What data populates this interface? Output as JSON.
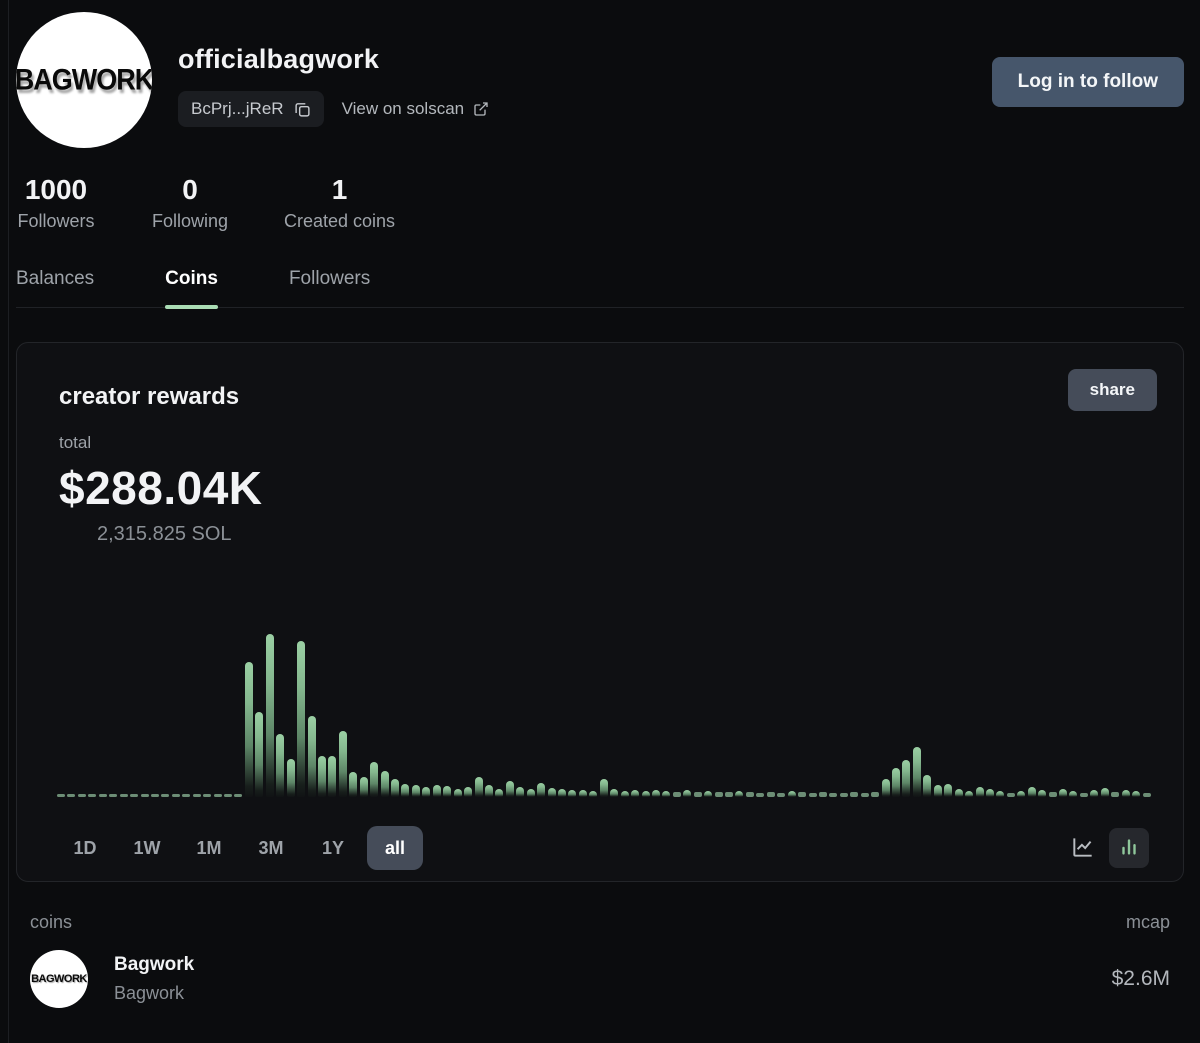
{
  "profile": {
    "username": "officialbagwork",
    "avatar_text": "BAGWORK",
    "address_short": "BcPrj...jReR",
    "solscan_label": "View on solscan",
    "follow_button": "Log in to follow",
    "stats": [
      {
        "value": "1000",
        "label": "Followers"
      },
      {
        "value": "0",
        "label": "Following"
      },
      {
        "value": "1",
        "label": "Created coins"
      }
    ]
  },
  "tabs": [
    {
      "label": "Balances",
      "active": false
    },
    {
      "label": "Coins",
      "active": true
    },
    {
      "label": "Followers",
      "active": false
    }
  ],
  "rewards_card": {
    "title": "creator rewards",
    "share_label": "share",
    "total_label": "total",
    "total_usd": "$288.04K",
    "total_sol": "2,315.825 SOL",
    "ranges": [
      "1D",
      "1W",
      "1M",
      "3M",
      "1Y",
      "all"
    ],
    "active_range": "all"
  },
  "chart_data": {
    "type": "bar",
    "title": "creator rewards over time (all range)",
    "xlabel": "",
    "ylabel": "",
    "x_axis_note": "time buckets, no tick labels shown on screen",
    "ylim": [
      0,
      165
    ],
    "values_unit": "relative bar height in px (no numeric axis shown)",
    "bar_color_top": "#9bd0a4",
    "bar_color_bottom": "#1c281f",
    "grid": false,
    "legend": false,
    "values": [
      3,
      3,
      3,
      3,
      3,
      3,
      3,
      3,
      3,
      3,
      3,
      3,
      3,
      3,
      3,
      3,
      3,
      3,
      135,
      85,
      163,
      63,
      38,
      156,
      81,
      41,
      41,
      66,
      25,
      20,
      35,
      26,
      18,
      13,
      12,
      10,
      12,
      11,
      8,
      10,
      20,
      12,
      8,
      16,
      10,
      8,
      14,
      9,
      8,
      7,
      7,
      6,
      18,
      8,
      6,
      7,
      6,
      7,
      6,
      5,
      7,
      5,
      6,
      5,
      5,
      6,
      5,
      4,
      5,
      4,
      6,
      5,
      4,
      5,
      4,
      4,
      5,
      4,
      5,
      18,
      29,
      37,
      50,
      22,
      12,
      13,
      8,
      6,
      10,
      8,
      6,
      4,
      6,
      10,
      7,
      5,
      8,
      6,
      4,
      7,
      9,
      5,
      7,
      6,
      4
    ]
  },
  "coins_section": {
    "header_left": "coins",
    "header_right": "mcap",
    "rows": [
      {
        "name": "Bagwork",
        "symbol": "Bagwork",
        "avatar_text": "BAGWORK",
        "mcap": "$2.6M"
      }
    ]
  },
  "colors": {
    "page_bg": "#0b0c0e",
    "card_bg": "#0f1013",
    "card_border": "#232529",
    "accent_green": "#aadcb4",
    "slate_button": "#46566b",
    "gray_button": "#454c59",
    "text_secondary": "#9ea3a9"
  }
}
